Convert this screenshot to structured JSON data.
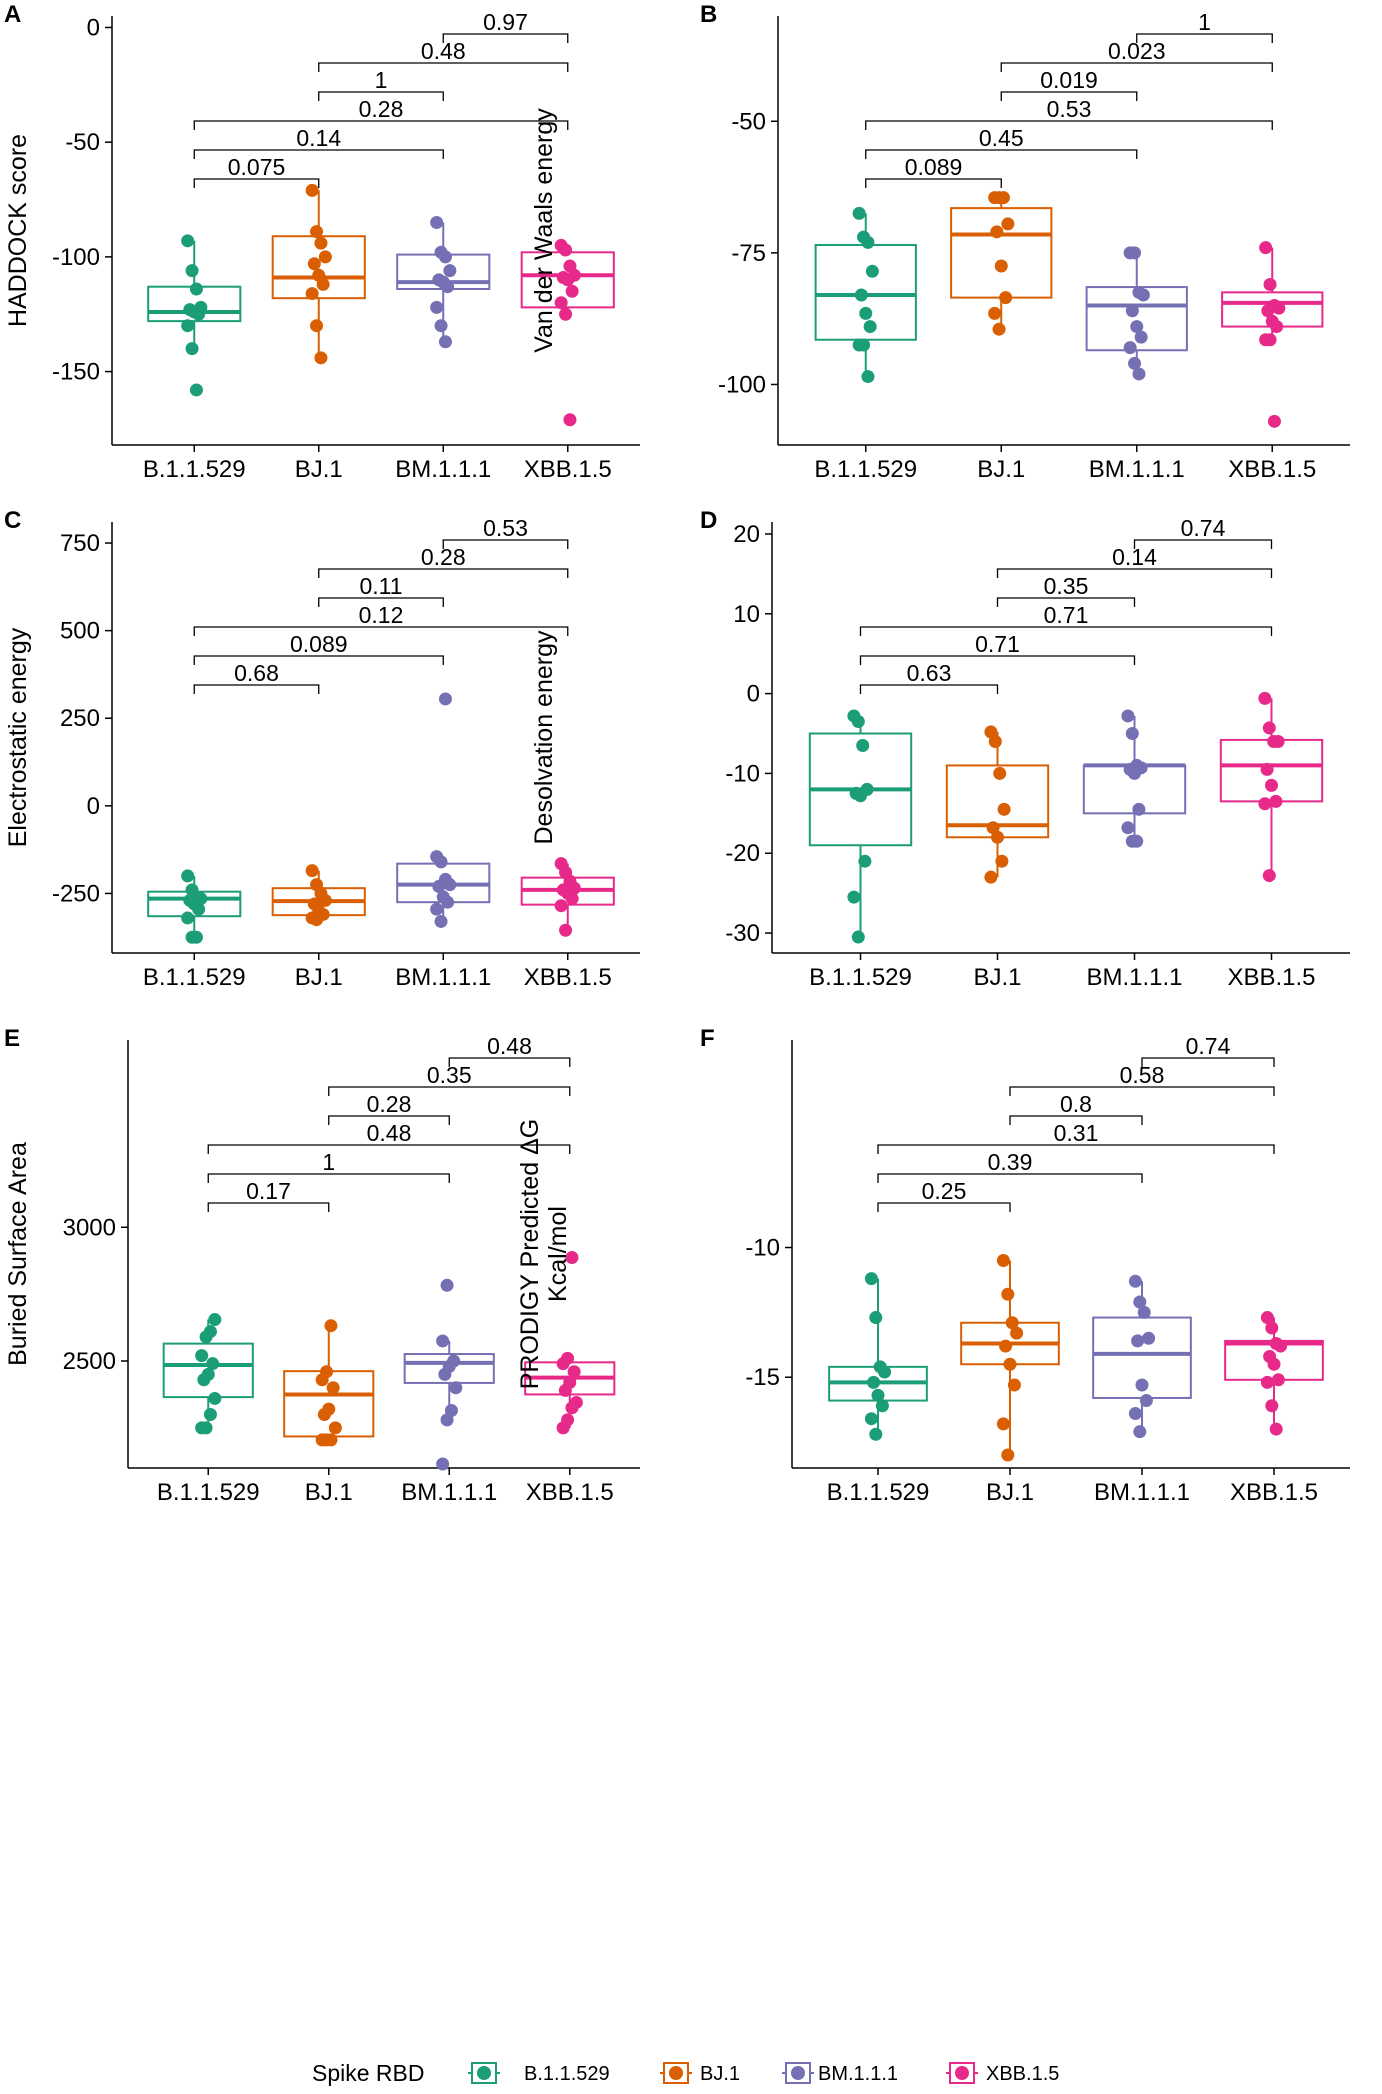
{
  "legend": {
    "title": "Spike RBD",
    "entries": [
      "B.1.1.529",
      "BJ.1",
      "BM.1.1.1",
      "XBB.1.5"
    ]
  },
  "colors": {
    "B.1.1.529": "#1b9e77",
    "BJ.1": "#d95f02",
    "BM.1.1.1": "#7570b3",
    "XBB.1.5": "#e7298a"
  },
  "chart_data": [
    {
      "panel": "A",
      "type": "box",
      "ylabel": [
        "HADDOCK score"
      ],
      "categories": [
        "B.1.1.529",
        "BJ.1",
        "BM.1.1.1",
        "XBB.1.5"
      ],
      "ylim": [
        -182,
        5
      ],
      "yticks": [
        0,
        -50,
        -100,
        -150
      ],
      "yticklabels": [
        "0",
        "-50",
        "-100",
        "-150"
      ],
      "boxes": [
        {
          "q1": -128,
          "median": -124,
          "q3": -113,
          "whislo": -140,
          "whishi": -93
        },
        {
          "q1": -118,
          "median": -109,
          "q3": -91,
          "whislo": -144,
          "whishi": -71
        },
        {
          "q1": -114,
          "median": -111,
          "q3": -99,
          "whislo": -137,
          "whishi": -85
        },
        {
          "q1": -122,
          "median": -108,
          "q3": -98,
          "whislo": -125,
          "whishi": -95
        }
      ],
      "points": [
        [
          -93,
          -106,
          -114,
          -122,
          -123,
          -124,
          -125,
          -130,
          -140,
          -158
        ],
        [
          -71,
          -89,
          -94,
          -100,
          -103,
          -108,
          -112,
          -116,
          -130,
          -144
        ],
        [
          -85,
          -98,
          -100,
          -106,
          -110,
          -111,
          -113,
          -122,
          -130,
          -137
        ],
        [
          -95,
          -97,
          -104,
          -108,
          -109,
          -110,
          -115,
          -120,
          -125,
          -171
        ]
      ],
      "brackets": [
        {
          "from": 0,
          "to": 1,
          "label": "0.075"
        },
        {
          "from": 0,
          "to": 2,
          "label": "0.14"
        },
        {
          "from": 0,
          "to": 3,
          "label": "0.28"
        },
        {
          "from": 1,
          "to": 2,
          "label": "1"
        },
        {
          "from": 1,
          "to": 3,
          "label": "0.48"
        },
        {
          "from": 2,
          "to": 3,
          "label": "0.97"
        }
      ]
    },
    {
      "panel": "B",
      "type": "box",
      "ylabel": [
        "Van der Waals energy"
      ],
      "categories": [
        "B.1.1.529",
        "BJ.1",
        "BM.1.1.1",
        "XBB.1.5"
      ],
      "ylim": [
        -111.5,
        -30
      ],
      "yticks": [
        -50,
        -75,
        -100
      ],
      "yticklabels": [
        "-50",
        "-75",
        "-100"
      ],
      "boxes": [
        {
          "q1": -91.5,
          "median": -83,
          "q3": -73.5,
          "whislo": -98.5,
          "whishi": -67.5
        },
        {
          "q1": -83.5,
          "median": -71.5,
          "q3": -66.5,
          "whislo": -89.5,
          "whishi": -64.5
        },
        {
          "q1": -93.5,
          "median": -85,
          "q3": -81.5,
          "whislo": -98,
          "whishi": -75
        },
        {
          "q1": -89,
          "median": -84.5,
          "q3": -82.5,
          "whislo": -91.5,
          "whishi": -74
        }
      ],
      "points": [
        [
          -67.5,
          -72,
          -73,
          -78.5,
          -83,
          -86.5,
          -89,
          -92.5,
          -92.5,
          -98.5
        ],
        [
          -64.5,
          -64.5,
          -64.5,
          -69.5,
          -71,
          -77.5,
          -83.5,
          -86.5,
          -89.5
        ],
        [
          -75,
          -75,
          -82.5,
          -83,
          -86,
          -89,
          -91,
          -93,
          -96,
          -98
        ],
        [
          -74,
          -81,
          -85,
          -85.5,
          -86,
          -88,
          -89,
          -91.5,
          -91.5,
          -107
        ]
      ],
      "brackets": [
        {
          "from": 0,
          "to": 1,
          "label": "0.089"
        },
        {
          "from": 0,
          "to": 2,
          "label": "0.45"
        },
        {
          "from": 0,
          "to": 3,
          "label": "0.53"
        },
        {
          "from": 1,
          "to": 2,
          "label": "0.019"
        },
        {
          "from": 1,
          "to": 3,
          "label": "0.023"
        },
        {
          "from": 2,
          "to": 3,
          "label": "1"
        }
      ]
    },
    {
      "panel": "C",
      "type": "box",
      "ylabel": [
        "Electrostatic energy"
      ],
      "categories": [
        "B.1.1.529",
        "BJ.1",
        "BM.1.1.1",
        "XBB.1.5"
      ],
      "ylim": [
        -420,
        810
      ],
      "yticks": [
        750,
        500,
        250,
        0,
        -250
      ],
      "yticklabels": [
        "750",
        "500",
        "250",
        "0",
        "-250"
      ],
      "boxes": [
        {
          "q1": -315,
          "median": -265,
          "q3": -245,
          "whislo": -375,
          "whishi": -200
        },
        {
          "q1": -312,
          "median": -272,
          "q3": -235,
          "whislo": -325,
          "whishi": -185
        },
        {
          "q1": -275,
          "median": -225,
          "q3": -165,
          "whislo": -330,
          "whishi": -145
        },
        {
          "q1": -282,
          "median": -240,
          "q3": -205,
          "whislo": -355,
          "whishi": -165
        }
      ],
      "points": [
        [
          -200,
          -240,
          -260,
          -265,
          -270,
          -280,
          -295,
          -320,
          -375,
          -375
        ],
        [
          -185,
          -225,
          -250,
          -270,
          -280,
          -300,
          -310,
          -320,
          -325
        ],
        [
          -145,
          -160,
          -210,
          -225,
          -230,
          -260,
          -275,
          -295,
          -330,
          305
        ],
        [
          -165,
          -190,
          -215,
          -235,
          -240,
          -250,
          -265,
          -285,
          -355
        ]
      ],
      "brackets": [
        {
          "from": 0,
          "to": 1,
          "label": "0.68"
        },
        {
          "from": 0,
          "to": 2,
          "label": "0.089"
        },
        {
          "from": 0,
          "to": 3,
          "label": "0.12"
        },
        {
          "from": 1,
          "to": 2,
          "label": "0.11"
        },
        {
          "from": 1,
          "to": 3,
          "label": "0.28"
        },
        {
          "from": 2,
          "to": 3,
          "label": "0.53"
        }
      ]
    },
    {
      "panel": "D",
      "type": "box",
      "ylabel": [
        "Desolvation energy"
      ],
      "categories": [
        "B.1.1.529",
        "BJ.1",
        "BM.1.1.1",
        "XBB.1.5"
      ],
      "ylim": [
        -32.5,
        21.5
      ],
      "yticks": [
        20,
        10,
        0,
        -10,
        -20,
        -30
      ],
      "yticklabels": [
        "20",
        "10",
        "0",
        "-10",
        "-20",
        "-30"
      ],
      "boxes": [
        {
          "q1": -19,
          "median": -12,
          "q3": -5,
          "whislo": -30.5,
          "whishi": -2.8
        },
        {
          "q1": -18,
          "median": -16.5,
          "q3": -9,
          "whislo": -23,
          "whishi": -4.8
        },
        {
          "q1": -15,
          "median": -9,
          "q3": -9,
          "whislo": -18.5,
          "whishi": -2.8
        },
        {
          "q1": -13.5,
          "median": -9,
          "q3": -5.8,
          "whislo": -22.8,
          "whishi": -0.6
        }
      ],
      "points": [
        [
          -2.8,
          -3.5,
          -6.5,
          -12,
          -12.5,
          -12.8,
          -21,
          -25.5,
          -30.5
        ],
        [
          -4.8,
          -6,
          -10,
          -14.5,
          -16.8,
          -18,
          -21,
          -23
        ],
        [
          -2.8,
          -5,
          -9,
          -9.3,
          -9.5,
          -10,
          -14.5,
          -16.8,
          -18.5,
          -18.5
        ],
        [
          -0.6,
          -4.3,
          -6,
          -6,
          -9.5,
          -11.5,
          -13.5,
          -13.8,
          -22.8
        ]
      ],
      "brackets": [
        {
          "from": 0,
          "to": 1,
          "label": "0.63"
        },
        {
          "from": 0,
          "to": 2,
          "label": "0.71"
        },
        {
          "from": 0,
          "to": 3,
          "label": "0.71"
        },
        {
          "from": 1,
          "to": 2,
          "label": "0.35"
        },
        {
          "from": 1,
          "to": 3,
          "label": "0.14"
        },
        {
          "from": 2,
          "to": 3,
          "label": "0.74"
        }
      ]
    },
    {
      "panel": "E",
      "type": "box",
      "ylabel": [
        "Buried Surface Area"
      ],
      "categories": [
        "B.1.1.529",
        "BJ.1",
        "BM.1.1.1",
        "XBB.1.5"
      ],
      "ylim": [
        2100,
        3700
      ],
      "yticks": [
        3000,
        2500
      ],
      "yticklabels": [
        "3000",
        "2500"
      ],
      "boxes": [
        {
          "q1": 2365,
          "median": 2485,
          "q3": 2565,
          "whislo": 2250,
          "whishi": 2655
        },
        {
          "q1": 2218,
          "median": 2375,
          "q3": 2462,
          "whislo": 2205,
          "whishi": 2632
        },
        {
          "q1": 2418,
          "median": 2493,
          "q3": 2526,
          "whislo": 2315,
          "whishi": 2575
        },
        {
          "q1": 2375,
          "median": 2438,
          "q3": 2495,
          "whislo": 2250,
          "whishi": 2512
        }
      ],
      "points": [
        [
          2250,
          2250,
          2300,
          2360,
          2430,
          2450,
          2490,
          2520,
          2590,
          2610,
          2655
        ],
        [
          2205,
          2205,
          2205,
          2250,
          2300,
          2320,
          2400,
          2430,
          2460,
          2632
        ],
        [
          2115,
          2280,
          2315,
          2400,
          2450,
          2480,
          2500,
          2575,
          2783
        ],
        [
          2250,
          2280,
          2325,
          2345,
          2390,
          2420,
          2460,
          2490,
          2510,
          2887
        ]
      ],
      "brackets": [
        {
          "from": 0,
          "to": 1,
          "label": "0.17"
        },
        {
          "from": 0,
          "to": 2,
          "label": "1"
        },
        {
          "from": 0,
          "to": 3,
          "label": "0.48"
        },
        {
          "from": 1,
          "to": 2,
          "label": "0.28"
        },
        {
          "from": 1,
          "to": 3,
          "label": "0.35"
        },
        {
          "from": 2,
          "to": 3,
          "label": "0.48"
        }
      ]
    },
    {
      "panel": "F",
      "type": "box",
      "ylabel": [
        "PRODIGY Predicted ΔG",
        "Kcal/mol"
      ],
      "categories": [
        "B.1.1.529",
        "BJ.1",
        "BM.1.1.1",
        "XBB.1.5"
      ],
      "ylim": [
        -18.5,
        -2
      ],
      "yticks": [
        -10,
        -15
      ],
      "yticklabels": [
        "-10",
        "-15"
      ],
      "boxes": [
        {
          "q1": -15.9,
          "median": -15.2,
          "q3": -14.6,
          "whislo": -17.2,
          "whishi": -11.2
        },
        {
          "q1": -14.5,
          "median": -13.7,
          "q3": -12.9,
          "whislo": -18,
          "whishi": -10.5
        },
        {
          "q1": -15.8,
          "median": -14.1,
          "q3": -12.7,
          "whislo": -17.1,
          "whishi": -11.3
        },
        {
          "q1": -15.1,
          "median": -13.7,
          "q3": -13.6,
          "whislo": -17,
          "whishi": -12.7
        }
      ],
      "points": [
        [
          -11.2,
          -12.7,
          -14.6,
          -14.8,
          -15.2,
          -15.7,
          -16.1,
          -16.6,
          -17.2
        ],
        [
          -10.5,
          -11.8,
          -12.9,
          -13.3,
          -13.8,
          -14.5,
          -15.3,
          -16.8,
          -18
        ],
        [
          -11.3,
          -12.1,
          -12.5,
          -13.5,
          -13.6,
          -15.3,
          -15.9,
          -16.4,
          -17.1
        ],
        [
          -12.7,
          -13.1,
          -13.7,
          -13.8,
          -14.2,
          -14.5,
          -15.1,
          -15.2,
          -16.1,
          -17
        ]
      ],
      "brackets": [
        {
          "from": 0,
          "to": 1,
          "label": "0.25"
        },
        {
          "from": 0,
          "to": 2,
          "label": "0.39"
        },
        {
          "from": 0,
          "to": 3,
          "label": "0.31"
        },
        {
          "from": 1,
          "to": 2,
          "label": "0.8"
        },
        {
          "from": 1,
          "to": 3,
          "label": "0.58"
        },
        {
          "from": 2,
          "to": 3,
          "label": "0.74"
        }
      ]
    }
  ]
}
